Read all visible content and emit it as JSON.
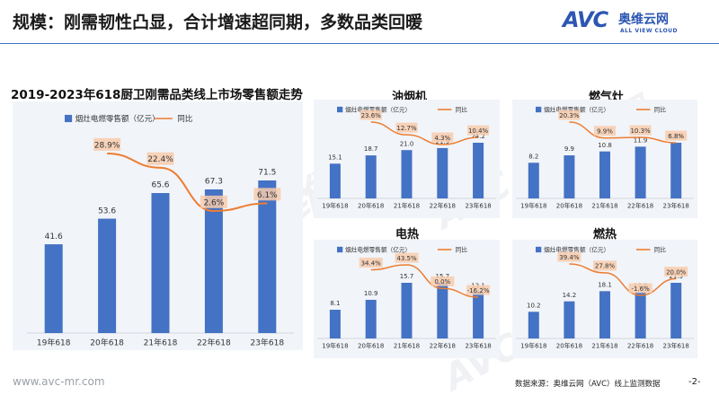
{
  "header": {
    "title": "规模：刚需韧性凸显，合计增速超同期，多数品类回暖"
  },
  "logo": {
    "main": "AVC",
    "cn": "奥维云网",
    "en": "ALL VIEW CLOUD"
  },
  "footer": {
    "url": "www.avc-mr.com",
    "source": "数据来源：奥维云网（AVC）线上监测数据",
    "page": "-2-"
  },
  "watermark": "AVC 奥维云网",
  "colors": {
    "bar": "#4472c4",
    "line": "#ed7d31",
    "label_box": "#f8cbad",
    "panel": "#f1f4f9",
    "accent": "#2c56b3"
  },
  "chart_data": [
    {
      "type": "bar",
      "title": "2019-2023年618厨卫刚需品类线上市场零售额走势",
      "categories": [
        "19年618",
        "20年618",
        "21年618",
        "22年618",
        "23年618"
      ],
      "series": [
        {
          "name": "烟灶电燃零售额（亿元）",
          "values": [
            41.6,
            53.6,
            65.6,
            67.3,
            71.5
          ],
          "labels": [
            "41.6",
            "53.6",
            "65.6",
            "67.3",
            "71.5"
          ]
        },
        {
          "name": "同比",
          "type": "line",
          "values": [
            null,
            28.9,
            22.4,
            2.6,
            6.1
          ],
          "labels": [
            null,
            "28.9%",
            "22.4%",
            "2.6%",
            "6.1%"
          ]
        }
      ],
      "ylim": [
        0,
        110
      ],
      "grid": false,
      "legend": "top"
    },
    {
      "type": "bar",
      "title": "油烟机",
      "categories": [
        "19年618",
        "20年618",
        "21年618",
        "22年618",
        "23年618"
      ],
      "series": [
        {
          "name": "烟灶电燃零售额（亿元）",
          "values": [
            15.1,
            18.7,
            21.0,
            21.9,
            24.2
          ],
          "labels": [
            "15.1",
            "18.7",
            "21.0",
            "21.9",
            "24.2"
          ]
        },
        {
          "name": "同比",
          "type": "line",
          "values": [
            null,
            23.6,
            12.7,
            4.3,
            10.4
          ],
          "labels": [
            null,
            "23.6%",
            "12.7%",
            "4.3%",
            "10.4%"
          ]
        }
      ],
      "ylim": [
        0,
        40
      ],
      "grid": false,
      "legend": "top"
    },
    {
      "type": "bar",
      "title": "燃气灶",
      "categories": [
        "19年618",
        "20年618",
        "21年618",
        "22年618",
        "23年618"
      ],
      "series": [
        {
          "name": "烟灶电燃零售额（亿元）",
          "values": [
            8.2,
            9.9,
            10.8,
            11.9,
            12.8
          ],
          "labels": [
            "8.2",
            "9.9",
            "10.8",
            "11.9",
            "12.8"
          ]
        },
        {
          "name": "同比",
          "type": "line",
          "values": [
            null,
            20.3,
            9.9,
            10.3,
            6.8
          ],
          "labels": [
            null,
            "20.3%",
            "9.9%",
            "10.3%",
            "6.8%"
          ]
        }
      ],
      "ylim": [
        0,
        24
      ],
      "grid": false,
      "legend": "top"
    },
    {
      "type": "bar",
      "title": "电热",
      "categories": [
        "19年618",
        "20年618",
        "21年618",
        "22年618",
        "23年618"
      ],
      "series": [
        {
          "name": "烟灶电燃零售额（亿元）",
          "values": [
            8.1,
            10.9,
            15.7,
            15.7,
            13.1
          ],
          "labels": [
            "8.1",
            "10.9",
            "15.7",
            "15.7",
            "13.1"
          ]
        },
        {
          "name": "同比",
          "type": "line",
          "values": [
            null,
            34.4,
            43.5,
            0.0,
            -16.2
          ],
          "labels": [
            null,
            "34.4%",
            "43.5%",
            "0.0%",
            "-16.2%"
          ]
        }
      ],
      "ylim": [
        0,
        35
      ],
      "grid": false,
      "legend": "top"
    },
    {
      "type": "bar",
      "title": "燃热",
      "categories": [
        "19年618",
        "20年618",
        "21年618",
        "22年618",
        "23年618"
      ],
      "series": [
        {
          "name": "烟灶电燃零售额（亿元）",
          "values": [
            10.2,
            14.2,
            18.1,
            17.8,
            21.3
          ],
          "labels": [
            "10.2",
            "14.2",
            "18.1",
            "17.8",
            "21.3"
          ]
        },
        {
          "name": "同比",
          "type": "line",
          "values": [
            null,
            39.4,
            27.8,
            -1.6,
            20.0
          ],
          "labels": [
            null,
            "39.4%",
            "27.8%",
            "-1.6%",
            "20.0%"
          ]
        }
      ],
      "ylim": [
        0,
        46
      ],
      "grid": false,
      "legend": "top"
    }
  ]
}
